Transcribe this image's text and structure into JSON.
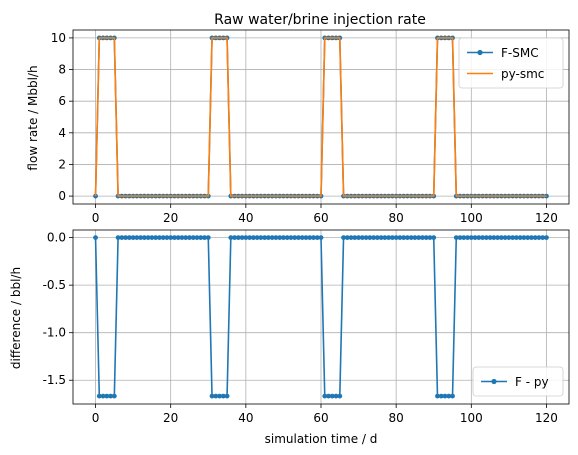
{
  "chart_data": [
    {
      "type": "line",
      "title": "Raw water/brine injection rate",
      "xlabel": "",
      "ylabel": "flow rate / Mbbl/h",
      "xlim": [
        -6,
        126
      ],
      "ylim": [
        -0.5,
        10.5
      ],
      "xticks": [
        "0",
        "20",
        "40",
        "60",
        "80",
        "100",
        "120"
      ],
      "yticks": [
        "0",
        "2",
        "4",
        "6",
        "8",
        "10"
      ],
      "grid": true,
      "legend": "top-right",
      "x": {
        "start": 0,
        "end": 120,
        "step": 1
      },
      "pulses": {
        "starts": [
          1,
          31,
          61,
          91
        ],
        "duration": 4,
        "on_value": 10,
        "off_value": 0
      },
      "series": [
        {
          "name": "F-SMC",
          "color": "#1f77b4",
          "marker": "point"
        },
        {
          "name": "py-smc",
          "color": "#ff7f0e",
          "marker": "none"
        }
      ]
    },
    {
      "type": "line",
      "title": "",
      "xlabel": "simulation time / d",
      "ylabel": "difference /  bbl/h",
      "xlim": [
        -6,
        126
      ],
      "ylim": [
        -1.75,
        0.08
      ],
      "xticks": [
        "0",
        "20",
        "40",
        "60",
        "80",
        "100",
        "120"
      ],
      "yticks": [
        "0.0",
        "-0.5",
        "-1.0",
        "-1.5"
      ],
      "grid": true,
      "legend": "bottom-right",
      "x": {
        "start": 0,
        "end": 120,
        "step": 1
      },
      "pulses": {
        "starts": [
          1,
          31,
          61,
          91
        ],
        "duration": 4,
        "on_value": -1.667,
        "off_value": 0
      },
      "series": [
        {
          "name": "F - py",
          "color": "#1f77b4",
          "marker": "point"
        }
      ]
    }
  ]
}
